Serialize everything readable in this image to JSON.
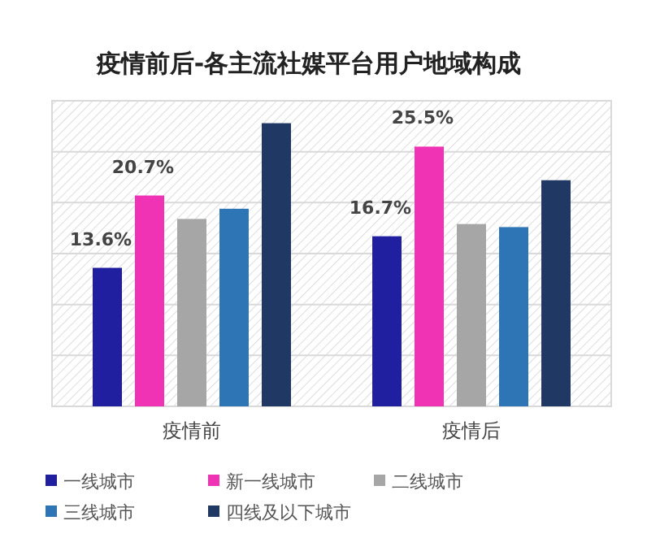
{
  "chart_data": {
    "type": "bar",
    "title": "疫情前后-各主流社媒平台用户地域构成",
    "categories": [
      "疫情前",
      "疫情后"
    ],
    "series": [
      {
        "name": "一线城市",
        "color": "#1f1fa0",
        "values": [
          13.6,
          16.7
        ],
        "value_labels": [
          "13.6%",
          "16.7%"
        ]
      },
      {
        "name": "新一线城市",
        "color": "#f032b4",
        "values": [
          20.7,
          25.5
        ],
        "value_labels": [
          "20.7%",
          "25.5%"
        ]
      },
      {
        "name": "二线城市",
        "color": "#a6a6a6",
        "values": [
          18.4,
          17.9
        ],
        "value_labels": [
          null,
          null
        ]
      },
      {
        "name": "三线城市",
        "color": "#2e75b6",
        "values": [
          19.4,
          17.6
        ],
        "value_labels": [
          null,
          null
        ]
      },
      {
        "name": "四线及以下城市",
        "color": "#1f3864",
        "values": [
          27.8,
          22.2
        ],
        "value_labels": [
          null,
          null
        ]
      }
    ],
    "ylim": [
      0,
      30
    ],
    "yticks": [
      {
        "value": 0,
        "label": null
      },
      {
        "value": 5,
        "label": null
      },
      {
        "value": 10,
        "label": null
      },
      {
        "value": 15,
        "label": null
      },
      {
        "value": 20,
        "label": null
      },
      {
        "value": 25,
        "label": null
      },
      {
        "value": 30,
        "label": null
      }
    ],
    "tick_labels": "x",
    "grid": "y",
    "legend": "bottom"
  }
}
